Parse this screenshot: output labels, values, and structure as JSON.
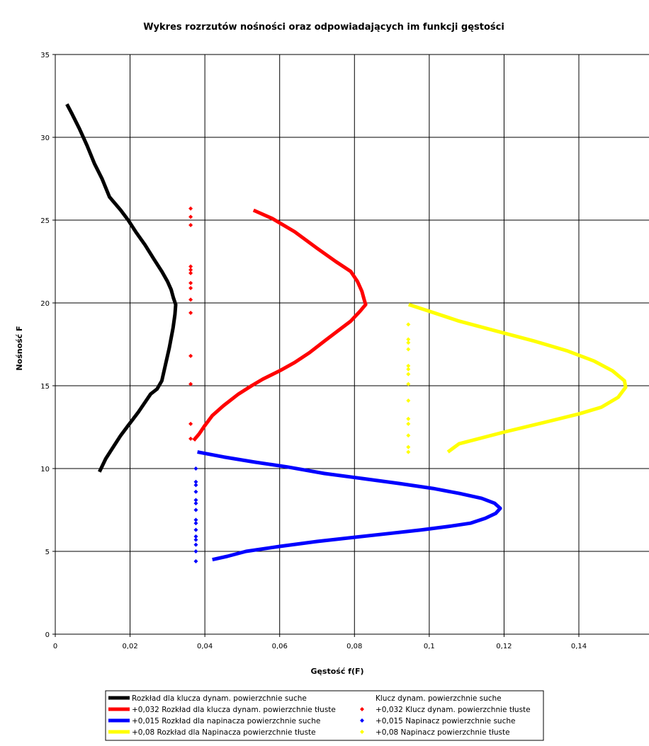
{
  "chart_data": {
    "type": "scatter",
    "title": "Wykres rozrzutów nośności oraz odpowiadających im funkcji gęstości",
    "xlabel": "Gęstość f(F)",
    "ylabel": "Nośność F",
    "xlim": [
      0,
      0.16
    ],
    "ylim": [
      0,
      35
    ],
    "x_ticks": [
      "0",
      "0,02",
      "0,04",
      "0,06",
      "0,08",
      "0,1",
      "0,12",
      "0,14"
    ],
    "y_ticks": [
      "0",
      "5",
      "10",
      "15",
      "20",
      "25",
      "30",
      "35"
    ],
    "grid": true,
    "legend_position": "bottom",
    "series": [
      {
        "name": "Rozkład dla klucza dynam. powierzchnie suche",
        "style": "line",
        "color": "#000000",
        "points": [
          [
            0.0031,
            32.0
          ],
          [
            0.0045,
            31.4
          ],
          [
            0.0065,
            30.5
          ],
          [
            0.0085,
            29.5
          ],
          [
            0.0105,
            28.4
          ],
          [
            0.0125,
            27.5
          ],
          [
            0.0145,
            26.4
          ],
          [
            0.0175,
            25.6
          ],
          [
            0.0195,
            25.0
          ],
          [
            0.0215,
            24.3
          ],
          [
            0.024,
            23.5
          ],
          [
            0.0265,
            22.6
          ],
          [
            0.0285,
            21.9
          ],
          [
            0.03,
            21.3
          ],
          [
            0.031,
            20.8
          ],
          [
            0.0316,
            20.3
          ],
          [
            0.0322,
            19.9
          ],
          [
            0.032,
            19.3
          ],
          [
            0.0315,
            18.5
          ],
          [
            0.0305,
            17.3
          ],
          [
            0.0295,
            16.3
          ],
          [
            0.0285,
            15.3
          ],
          [
            0.0272,
            14.8
          ],
          [
            0.0255,
            14.5
          ],
          [
            0.024,
            14.0
          ],
          [
            0.0222,
            13.4
          ],
          [
            0.0195,
            12.6
          ],
          [
            0.0175,
            12.0
          ],
          [
            0.0155,
            11.3
          ],
          [
            0.0135,
            10.6
          ],
          [
            0.0118,
            9.8
          ]
        ]
      },
      {
        "name": "+0,032 Rozkład dla klucza dynam. powierzchnie tłuste",
        "style": "line",
        "color": "#ff0000",
        "points": [
          [
            0.053,
            25.6
          ],
          [
            0.058,
            25.1
          ],
          [
            0.064,
            24.3
          ],
          [
            0.07,
            23.3
          ],
          [
            0.075,
            22.5
          ],
          [
            0.079,
            21.9
          ],
          [
            0.0808,
            21.3
          ],
          [
            0.082,
            20.7
          ],
          [
            0.0826,
            20.2
          ],
          [
            0.083,
            19.9
          ],
          [
            0.0815,
            19.5
          ],
          [
            0.079,
            18.9
          ],
          [
            0.0755,
            18.3
          ],
          [
            0.072,
            17.7
          ],
          [
            0.068,
            17.0
          ],
          [
            0.064,
            16.4
          ],
          [
            0.06,
            15.9
          ],
          [
            0.0555,
            15.4
          ],
          [
            0.0525,
            15.0
          ],
          [
            0.049,
            14.5
          ],
          [
            0.045,
            13.8
          ],
          [
            0.042,
            13.2
          ],
          [
            0.04,
            12.6
          ],
          [
            0.0385,
            12.1
          ],
          [
            0.037,
            11.7
          ]
        ]
      },
      {
        "name": "+0,015 Rozkład dla napinacza powierzchnie suche",
        "style": "line",
        "color": "#0000ff",
        "points": [
          [
            0.038,
            11.0
          ],
          [
            0.045,
            10.7
          ],
          [
            0.053,
            10.4
          ],
          [
            0.062,
            10.1
          ],
          [
            0.072,
            9.7
          ],
          [
            0.082,
            9.4
          ],
          [
            0.092,
            9.1
          ],
          [
            0.101,
            8.8
          ],
          [
            0.108,
            8.5
          ],
          [
            0.114,
            8.2
          ],
          [
            0.1175,
            7.9
          ],
          [
            0.119,
            7.6
          ],
          [
            0.1178,
            7.3
          ],
          [
            0.115,
            7.0
          ],
          [
            0.111,
            6.7
          ],
          [
            0.105,
            6.5
          ],
          [
            0.098,
            6.3
          ],
          [
            0.09,
            6.1
          ],
          [
            0.08,
            5.85
          ],
          [
            0.07,
            5.6
          ],
          [
            0.06,
            5.3
          ],
          [
            0.051,
            5.0
          ],
          [
            0.046,
            4.7
          ],
          [
            0.042,
            4.5
          ]
        ]
      },
      {
        "name": "+0,08 Rozkład dla Napinacza powierzchnie tłuste",
        "style": "line",
        "color": "#ffff00",
        "points": [
          [
            0.0945,
            19.9
          ],
          [
            0.1,
            19.5
          ],
          [
            0.108,
            18.9
          ],
          [
            0.118,
            18.3
          ],
          [
            0.128,
            17.7
          ],
          [
            0.137,
            17.1
          ],
          [
            0.144,
            16.5
          ],
          [
            0.149,
            15.9
          ],
          [
            0.1522,
            15.3
          ],
          [
            0.1525,
            14.9
          ],
          [
            0.1505,
            14.3
          ],
          [
            0.146,
            13.7
          ],
          [
            0.14,
            13.3
          ],
          [
            0.131,
            12.8
          ],
          [
            0.12,
            12.2
          ],
          [
            0.108,
            11.5
          ],
          [
            0.105,
            11.0
          ]
        ]
      },
      {
        "name": "Klucz dynam. powierzchnie suche",
        "style": "marker",
        "color": "#000000",
        "points": []
      },
      {
        "name": "+0,032 Klucz dynam. powierzchnie tłuste",
        "style": "marker",
        "color": "#ff0000",
        "points": [
          [
            0.0362,
            25.7
          ],
          [
            0.0362,
            25.2
          ],
          [
            0.0362,
            24.7
          ],
          [
            0.0362,
            22.2
          ],
          [
            0.0362,
            22.0
          ],
          [
            0.0362,
            21.8
          ],
          [
            0.0362,
            21.2
          ],
          [
            0.0362,
            20.9
          ],
          [
            0.0362,
            20.2
          ],
          [
            0.0362,
            19.4
          ],
          [
            0.0362,
            16.8
          ],
          [
            0.0362,
            15.1
          ],
          [
            0.0362,
            12.7
          ],
          [
            0.0362,
            11.8
          ]
        ]
      },
      {
        "name": "+0,015 Napinacz powierzchnie suche",
        "style": "marker",
        "color": "#0000ff",
        "points": [
          [
            0.0376,
            10.0
          ],
          [
            0.0376,
            9.2
          ],
          [
            0.0376,
            9.0
          ],
          [
            0.0376,
            8.6
          ],
          [
            0.0376,
            8.1
          ],
          [
            0.0376,
            7.9
          ],
          [
            0.0376,
            7.5
          ],
          [
            0.0376,
            6.9
          ],
          [
            0.0376,
            6.7
          ],
          [
            0.0376,
            6.3
          ],
          [
            0.0376,
            5.9
          ],
          [
            0.0376,
            5.7
          ],
          [
            0.0376,
            5.4
          ],
          [
            0.0376,
            5.0
          ],
          [
            0.0376,
            4.4
          ]
        ]
      },
      {
        "name": "+0,08 Napinacz powierzchnie tłuste",
        "style": "marker",
        "color": "#ffff00",
        "points": [
          [
            0.0944,
            18.7
          ],
          [
            0.0944,
            17.8
          ],
          [
            0.0944,
            17.6
          ],
          [
            0.0944,
            17.2
          ],
          [
            0.0944,
            16.2
          ],
          [
            0.0944,
            16.0
          ],
          [
            0.0944,
            15.7
          ],
          [
            0.0944,
            15.1
          ],
          [
            0.0944,
            14.1
          ],
          [
            0.0944,
            13.0
          ],
          [
            0.0944,
            12.7
          ],
          [
            0.0944,
            12.0
          ],
          [
            0.0944,
            11.3
          ],
          [
            0.0944,
            11.0
          ]
        ]
      }
    ]
  }
}
